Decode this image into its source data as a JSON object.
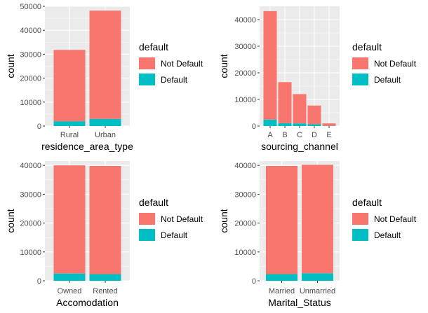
{
  "colors": {
    "panel_bg": "#ebebeb",
    "grid": "#ffffff",
    "tick_text": "#4d4d4d",
    "tick_mark": "#333333"
  },
  "chart_data": [
    {
      "type": "bar",
      "stacked": true,
      "xlabel": "residence_area_type",
      "ylabel": "count",
      "categories": [
        "Rural",
        "Urban"
      ],
      "ylim": [
        0,
        50000
      ],
      "yticks": [
        0,
        10000,
        20000,
        30000,
        40000,
        50000
      ],
      "ytick_labels": [
        "0",
        "10000",
        "20000",
        "30000",
        "40000",
        "50000"
      ],
      "series": [
        {
          "name": "Default",
          "color": "#00bfc4",
          "values": [
            2000,
            3000
          ]
        },
        {
          "name": "Not Default",
          "color": "#f8766d",
          "values": [
            29800,
            45200
          ]
        }
      ],
      "legend": {
        "title": "default",
        "position": "right",
        "entries": [
          "Not Default",
          "Default"
        ]
      }
    },
    {
      "type": "bar",
      "stacked": true,
      "xlabel": "sourcing_channel",
      "ylabel": "count",
      "categories": [
        "A",
        "B",
        "C",
        "D",
        "E"
      ],
      "ylim": [
        0,
        45000
      ],
      "yticks": [
        0,
        10000,
        20000,
        30000,
        40000
      ],
      "ytick_labels": [
        "0",
        "10000",
        "20000",
        "30000",
        "40000"
      ],
      "series": [
        {
          "name": "Default",
          "color": "#00bfc4",
          "values": [
            2400,
            1100,
            1000,
            700,
            100
          ]
        },
        {
          "name": "Not Default",
          "color": "#f8766d",
          "values": [
            40800,
            15400,
            11000,
            7000,
            900
          ]
        }
      ],
      "legend": {
        "title": "default",
        "position": "right",
        "entries": [
          "Not Default",
          "Default"
        ]
      }
    },
    {
      "type": "bar",
      "stacked": true,
      "xlabel": "Accomodation",
      "ylabel": "count",
      "categories": [
        "Owned",
        "Rented"
      ],
      "ylim": [
        0,
        41500
      ],
      "yticks": [
        0,
        10000,
        20000,
        30000,
        40000
      ],
      "ytick_labels": [
        "0",
        "10000",
        "20000",
        "30000",
        "40000"
      ],
      "series": [
        {
          "name": "Default",
          "color": "#00bfc4",
          "values": [
            2500,
            2300
          ]
        },
        {
          "name": "Not Default",
          "color": "#f8766d",
          "values": [
            37500,
            37500
          ]
        }
      ],
      "legend": {
        "title": "default",
        "position": "right",
        "entries": [
          "Not Default",
          "Default"
        ]
      }
    },
    {
      "type": "bar",
      "stacked": true,
      "xlabel": "Marital_Status",
      "ylabel": "count",
      "categories": [
        "Married",
        "Unmarried"
      ],
      "ylim": [
        0,
        41500
      ],
      "yticks": [
        0,
        10000,
        20000,
        30000,
        40000
      ],
      "ytick_labels": [
        "0",
        "10000",
        "20000",
        "30000",
        "40000"
      ],
      "series": [
        {
          "name": "Default",
          "color": "#00bfc4",
          "values": [
            2300,
            2600
          ]
        },
        {
          "name": "Not Default",
          "color": "#f8766d",
          "values": [
            37500,
            37600
          ]
        }
      ],
      "legend": {
        "title": "default",
        "position": "right",
        "entries": [
          "Not Default",
          "Default"
        ]
      }
    }
  ]
}
